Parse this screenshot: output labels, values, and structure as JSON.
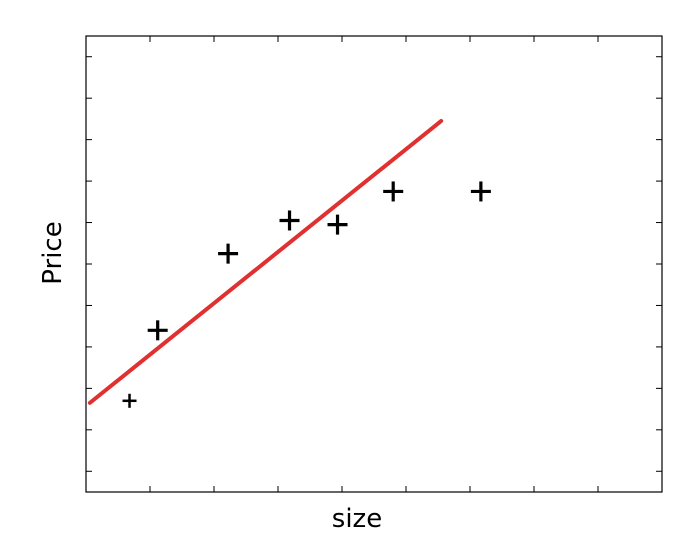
{
  "chart_data": {
    "type": "scatter",
    "title": "",
    "xlabel": "size",
    "ylabel": "Price",
    "xlim": [
      0,
      9
    ],
    "ylim": [
      0,
      11
    ],
    "x_ticks": [
      1,
      2,
      3,
      4,
      5,
      6,
      7,
      8
    ],
    "y_ticks": [
      0.5,
      1.5,
      2.5,
      3.5,
      4.5,
      5.5,
      6.5,
      7.5,
      8.5,
      9.5,
      10.5
    ],
    "grid": false,
    "series": [
      {
        "values": [
          {
            "x": 0.68,
            "y": 2.2
          },
          {
            "x": 1.12,
            "y": 3.9
          },
          {
            "x": 2.22,
            "y": 5.75
          },
          {
            "x": 3.18,
            "y": 6.55
          },
          {
            "x": 3.93,
            "y": 6.45
          },
          {
            "x": 4.8,
            "y": 7.25
          },
          {
            "x": 6.17,
            "y": 7.25
          }
        ],
        "color": "#000000"
      }
    ],
    "fit_line": {
      "x": [
        0.06,
        5.55
      ],
      "y": [
        2.15,
        8.95
      ],
      "color": "#e03030"
    }
  }
}
